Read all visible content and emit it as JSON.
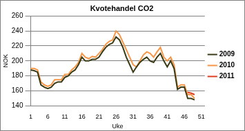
{
  "chart_data": {
    "type": "line",
    "title": "Kvotehandel CO2",
    "x_label": "Uke",
    "y_label": "NOK",
    "categories": [
      "1",
      null,
      null,
      null,
      null,
      "6",
      null,
      null,
      null,
      null,
      "11",
      null,
      null,
      null,
      null,
      "16",
      null,
      null,
      null,
      null,
      "21",
      null,
      null,
      null,
      null,
      "26",
      null,
      null,
      null,
      null,
      "31",
      null,
      null,
      null,
      null,
      "36",
      null,
      null,
      null,
      null,
      "41",
      null,
      null,
      null,
      null,
      "46",
      null,
      null,
      null,
      null,
      "51",
      null
    ],
    "series": [
      {
        "name": "2009",
        "color": "#3a3a14",
        "values": [
          188,
          187,
          185,
          168,
          165,
          163,
          165,
          170,
          172,
          172,
          178,
          180,
          185,
          188,
          195,
          205,
          200,
          200,
          202,
          202,
          205,
          212,
          218,
          222,
          224,
          232,
          228,
          218,
          205,
          195,
          185,
          192,
          198,
          202,
          205,
          200,
          198,
          205,
          210,
          200,
          192,
          200,
          190,
          162,
          165,
          165,
          150,
          150,
          148,
          null,
          null,
          null
        ]
      },
      {
        "name": "2010",
        "color": "#f79646",
        "values": [
          190,
          190,
          188,
          172,
          168,
          166,
          168,
          175,
          175,
          175,
          182,
          182,
          188,
          192,
          198,
          210,
          205,
          203,
          206,
          205,
          210,
          215,
          222,
          226,
          228,
          240,
          235,
          225,
          215,
          205,
          195,
          192,
          200,
          208,
          212,
          210,
          205,
          212,
          218,
          205,
          200,
          205,
          195,
          165,
          168,
          168,
          155,
          155,
          150,
          null,
          null,
          null
        ]
      },
      {
        "name": "2011",
        "color": "#e03c1e",
        "values": [
          null,
          null,
          null,
          null,
          null,
          null,
          null,
          null,
          null,
          null,
          null,
          null,
          null,
          null,
          null,
          null,
          null,
          null,
          null,
          null,
          null,
          null,
          null,
          null,
          null,
          null,
          null,
          null,
          null,
          null,
          null,
          null,
          null,
          null,
          null,
          null,
          null,
          null,
          null,
          null,
          null,
          null,
          null,
          null,
          null,
          null,
          158,
          157,
          155,
          null,
          null,
          null
        ]
      }
    ],
    "ylim": [
      140,
      260
    ],
    "yticks": [
      140,
      160,
      180,
      200,
      220,
      240,
      260
    ],
    "grid": true,
    "legend": "right"
  }
}
